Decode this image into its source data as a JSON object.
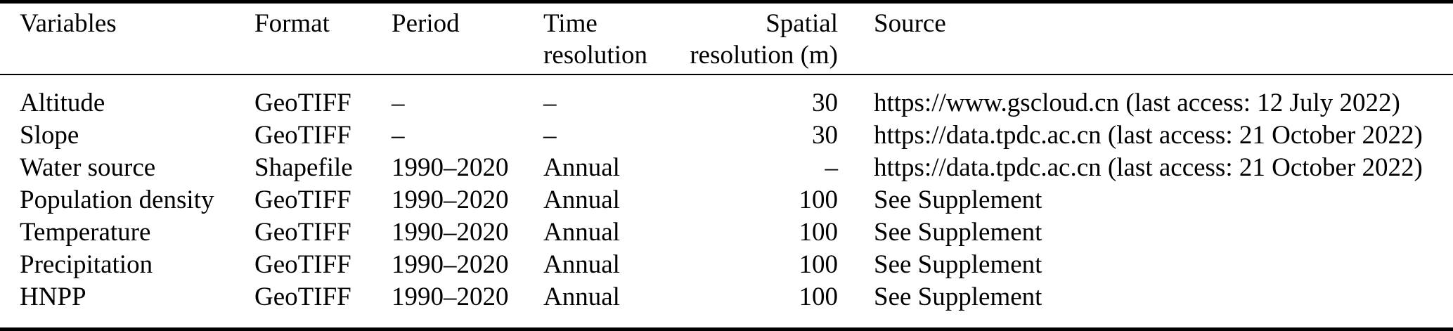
{
  "colors": {
    "text": "#000000",
    "background": "#ffffff",
    "rule": "#000000"
  },
  "table": {
    "header": {
      "variables": "Variables",
      "format": "Format",
      "period": "Period",
      "time_line1": "Time",
      "time_line2": "resolution",
      "spatial_line1": "Spatial",
      "spatial_line2": "resolution (m)",
      "source": "Source"
    },
    "rows": [
      [
        "Altitude",
        "GeoTIFF",
        "–",
        "–",
        "30",
        "https://www.gscloud.cn (last access: 12 July 2022)"
      ],
      [
        "Slope",
        "GeoTIFF",
        "–",
        "–",
        "30",
        "https://data.tpdc.ac.cn (last access: 21 October 2022)"
      ],
      [
        "Water source",
        "Shapefile",
        "1990–2020",
        "Annual",
        "–",
        "https://data.tpdc.ac.cn (last access: 21 October 2022)"
      ],
      [
        "Population density",
        "GeoTIFF",
        "1990–2020",
        "Annual",
        "100",
        "See Supplement"
      ],
      [
        "Temperature",
        "GeoTIFF",
        "1990–2020",
        "Annual",
        "100",
        "See Supplement"
      ],
      [
        "Precipitation",
        "GeoTIFF",
        "1990–2020",
        "Annual",
        "100",
        "See Supplement"
      ],
      [
        "HNPP",
        "GeoTIFF",
        "1990–2020",
        "Annual",
        "100",
        "See Supplement"
      ]
    ]
  }
}
